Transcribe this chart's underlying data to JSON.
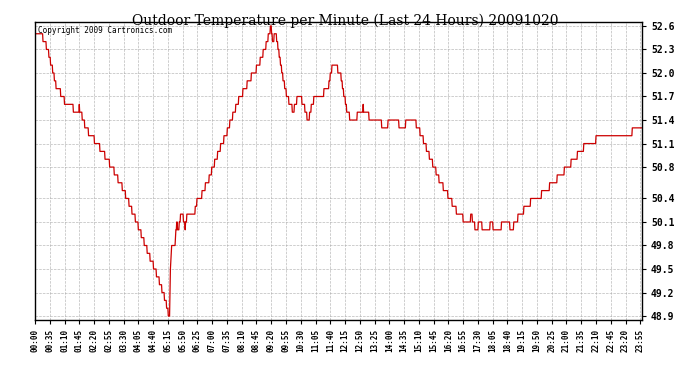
{
  "title": "Outdoor Temperature per Minute (Last 24 Hours) 20091020",
  "copyright": "Copyright 2009 Cartronics.com",
  "line_color": "#cc0000",
  "background_color": "#ffffff",
  "grid_color": "#aaaaaa",
  "ylim": [
    48.85,
    52.65
  ],
  "yticks": [
    48.9,
    49.2,
    49.5,
    49.8,
    50.1,
    50.4,
    50.8,
    51.1,
    51.4,
    51.7,
    52.0,
    52.3,
    52.6
  ],
  "xtick_labels": [
    "00:00",
    "00:35",
    "01:10",
    "01:45",
    "02:20",
    "02:55",
    "03:30",
    "04:05",
    "04:40",
    "05:15",
    "05:50",
    "06:25",
    "07:00",
    "07:35",
    "08:10",
    "08:45",
    "09:20",
    "09:55",
    "10:30",
    "11:05",
    "11:40",
    "12:15",
    "12:50",
    "13:25",
    "14:00",
    "14:35",
    "15:10",
    "15:45",
    "16:20",
    "16:55",
    "17:30",
    "18:05",
    "18:40",
    "19:15",
    "19:50",
    "20:25",
    "21:00",
    "21:35",
    "22:10",
    "22:45",
    "23:20",
    "23:55"
  ],
  "keypoints": [
    [
      0,
      52.55
    ],
    [
      15,
      52.5
    ],
    [
      30,
      52.3
    ],
    [
      50,
      51.85
    ],
    [
      70,
      51.65
    ],
    [
      90,
      51.55
    ],
    [
      100,
      51.52
    ],
    [
      105,
      51.55
    ],
    [
      110,
      51.48
    ],
    [
      120,
      51.3
    ],
    [
      140,
      51.15
    ],
    [
      160,
      51.0
    ],
    [
      180,
      50.82
    ],
    [
      200,
      50.62
    ],
    [
      215,
      50.45
    ],
    [
      230,
      50.25
    ],
    [
      245,
      50.05
    ],
    [
      260,
      49.82
    ],
    [
      275,
      49.62
    ],
    [
      290,
      49.42
    ],
    [
      305,
      49.18
    ],
    [
      310,
      49.08
    ],
    [
      314,
      48.98
    ],
    [
      317,
      48.93
    ],
    [
      319,
      48.91
    ],
    [
      321,
      49.5
    ],
    [
      325,
      49.85
    ],
    [
      328,
      49.75
    ],
    [
      332,
      49.82
    ],
    [
      336,
      50.08
    ],
    [
      340,
      50.0
    ],
    [
      345,
      50.15
    ],
    [
      350,
      50.18
    ],
    [
      356,
      50.05
    ],
    [
      362,
      50.22
    ],
    [
      370,
      50.18
    ],
    [
      378,
      50.22
    ],
    [
      385,
      50.38
    ],
    [
      395,
      50.45
    ],
    [
      410,
      50.62
    ],
    [
      430,
      50.92
    ],
    [
      455,
      51.25
    ],
    [
      480,
      51.62
    ],
    [
      505,
      51.88
    ],
    [
      530,
      52.1
    ],
    [
      548,
      52.35
    ],
    [
      556,
      52.52
    ],
    [
      560,
      52.58
    ],
    [
      562,
      52.48
    ],
    [
      564,
      52.35
    ],
    [
      567,
      52.48
    ],
    [
      570,
      52.52
    ],
    [
      573,
      52.45
    ],
    [
      577,
      52.3
    ],
    [
      582,
      52.12
    ],
    [
      590,
      51.88
    ],
    [
      598,
      51.68
    ],
    [
      605,
      51.62
    ],
    [
      612,
      51.5
    ],
    [
      618,
      51.62
    ],
    [
      625,
      51.72
    ],
    [
      630,
      51.68
    ],
    [
      635,
      51.62
    ],
    [
      642,
      51.5
    ],
    [
      648,
      51.38
    ],
    [
      655,
      51.55
    ],
    [
      665,
      51.72
    ],
    [
      675,
      51.68
    ],
    [
      685,
      51.75
    ],
    [
      695,
      51.82
    ],
    [
      705,
      52.08
    ],
    [
      712,
      52.12
    ],
    [
      718,
      52.05
    ],
    [
      725,
      51.95
    ],
    [
      733,
      51.72
    ],
    [
      740,
      51.52
    ],
    [
      748,
      51.42
    ],
    [
      758,
      51.42
    ],
    [
      768,
      51.48
    ],
    [
      778,
      51.55
    ],
    [
      785,
      51.5
    ],
    [
      795,
      51.42
    ],
    [
      808,
      51.45
    ],
    [
      818,
      51.38
    ],
    [
      828,
      51.28
    ],
    [
      840,
      51.38
    ],
    [
      852,
      51.42
    ],
    [
      862,
      51.35
    ],
    [
      872,
      51.28
    ],
    [
      882,
      51.38
    ],
    [
      892,
      51.42
    ],
    [
      900,
      51.38
    ],
    [
      910,
      51.28
    ],
    [
      920,
      51.15
    ],
    [
      932,
      50.98
    ],
    [
      945,
      50.82
    ],
    [
      958,
      50.65
    ],
    [
      970,
      50.52
    ],
    [
      982,
      50.42
    ],
    [
      995,
      50.28
    ],
    [
      1008,
      50.18
    ],
    [
      1020,
      50.12
    ],
    [
      1030,
      50.12
    ],
    [
      1035,
      50.18
    ],
    [
      1040,
      50.08
    ],
    [
      1045,
      50.02
    ],
    [
      1050,
      50.05
    ],
    [
      1055,
      50.12
    ],
    [
      1060,
      50.05
    ],
    [
      1065,
      49.98
    ],
    [
      1070,
      49.95
    ],
    [
      1075,
      50.02
    ],
    [
      1082,
      50.08
    ],
    [
      1090,
      50.02
    ],
    [
      1098,
      49.98
    ],
    [
      1105,
      50.05
    ],
    [
      1115,
      50.12
    ],
    [
      1122,
      50.08
    ],
    [
      1130,
      50.02
    ],
    [
      1138,
      50.08
    ],
    [
      1148,
      50.18
    ],
    [
      1158,
      50.25
    ],
    [
      1175,
      50.35
    ],
    [
      1200,
      50.45
    ],
    [
      1225,
      50.58
    ],
    [
      1250,
      50.72
    ],
    [
      1275,
      50.88
    ],
    [
      1300,
      51.05
    ],
    [
      1320,
      51.12
    ],
    [
      1340,
      51.18
    ],
    [
      1360,
      51.22
    ],
    [
      1380,
      51.25
    ],
    [
      1400,
      51.22
    ],
    [
      1415,
      51.25
    ],
    [
      1425,
      51.28
    ],
    [
      1439,
      51.32
    ]
  ]
}
